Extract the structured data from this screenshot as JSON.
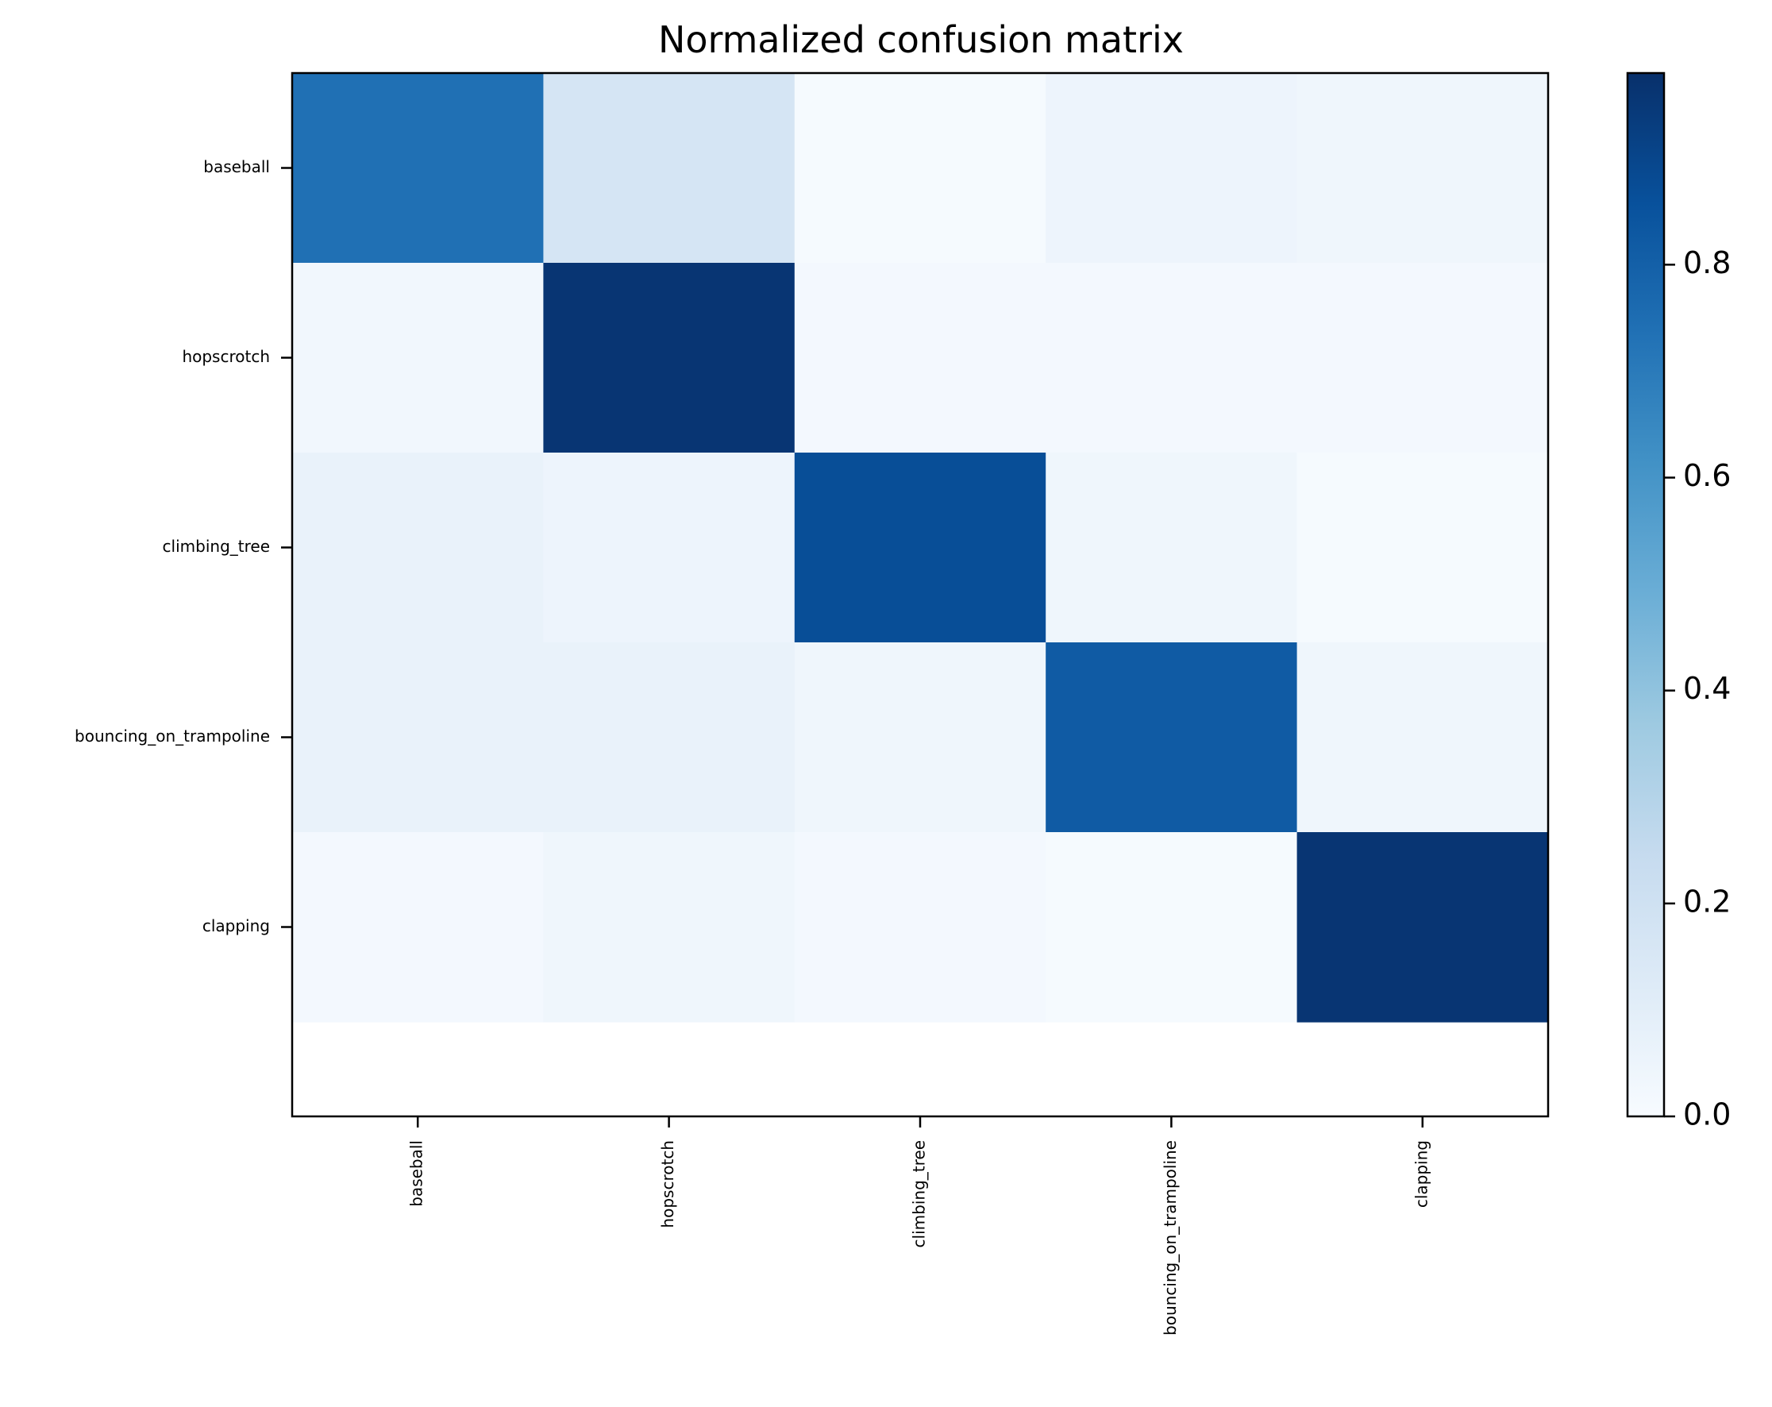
{
  "chart_data": {
    "type": "heatmap",
    "title": "Normalized confusion matrix",
    "xlabel": "",
    "ylabel": "",
    "row_labels": [
      "baseball",
      "hopscrotch",
      "climbing_tree",
      "bouncing_on_trampoline",
      "clapping"
    ],
    "col_labels": [
      "baseball",
      "hopscrotch",
      "climbing_tree",
      "bouncing_on_trampoline",
      "clapping"
    ],
    "values": [
      [
        0.74,
        0.17,
        0.01,
        0.05,
        0.04
      ],
      [
        0.03,
        0.96,
        0.02,
        0.02,
        0.02
      ],
      [
        0.07,
        0.05,
        0.87,
        0.04,
        0.01
      ],
      [
        0.07,
        0.07,
        0.04,
        0.82,
        0.04
      ],
      [
        0.02,
        0.04,
        0.02,
        0.01,
        0.96
      ]
    ],
    "colorbar": {
      "vmin": 0.0,
      "vmax": 0.98,
      "ticks": [
        0.0,
        0.2,
        0.4,
        0.6,
        0.8
      ],
      "tick_labels": [
        "0.0",
        "0.2",
        "0.4",
        "0.6",
        "0.8"
      ],
      "colormap": "Blues"
    },
    "grid": false
  }
}
